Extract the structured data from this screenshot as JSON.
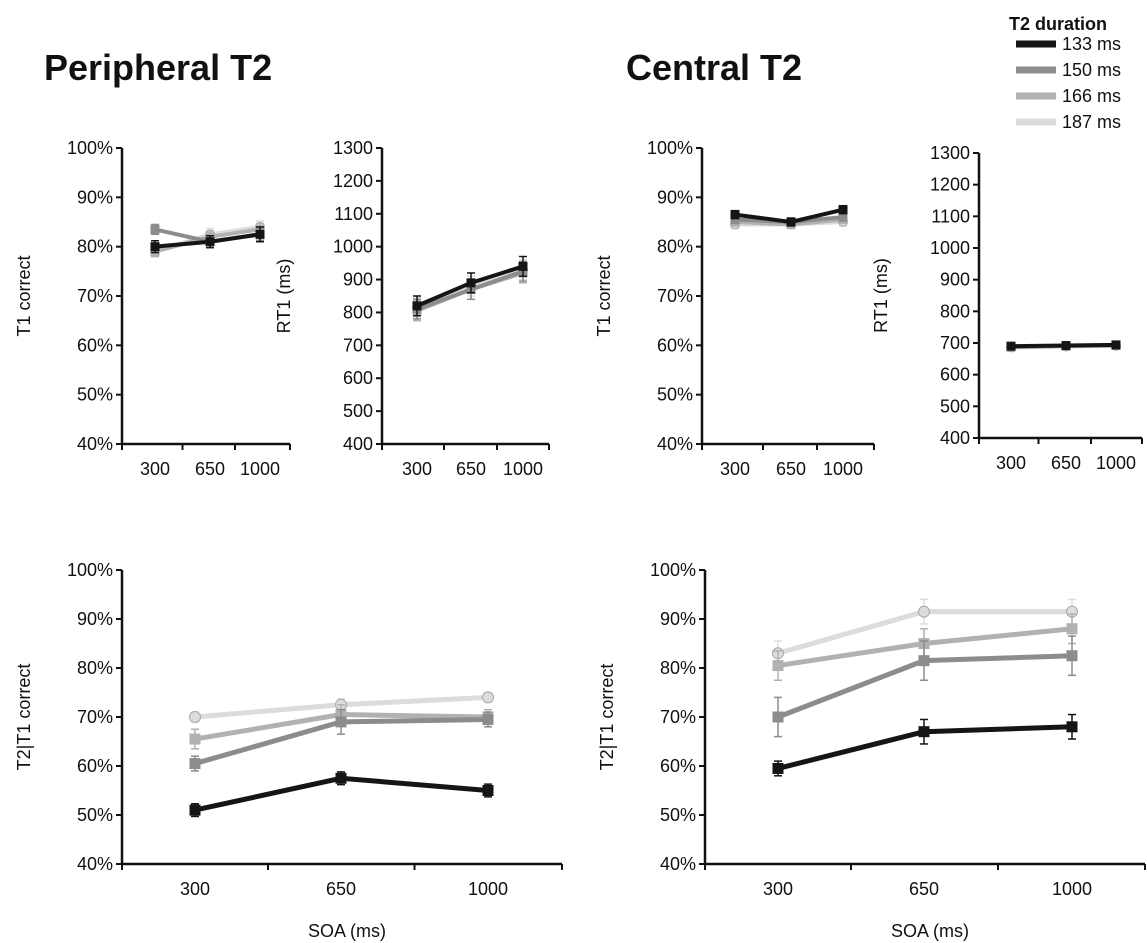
{
  "titles": {
    "peripheral": "Peripheral T2",
    "central": "Central T2"
  },
  "legend": {
    "title": "T2 duration",
    "entries": [
      {
        "label": "133 ms",
        "color": "#151515"
      },
      {
        "label": "150 ms",
        "color": "#8c8c8c"
      },
      {
        "label": "166 ms",
        "color": "#b1b1b1"
      },
      {
        "label": "187 ms",
        "color": "#dcdcdc"
      }
    ]
  },
  "chart_data": [
    {
      "id": "peripheral-t1",
      "type": "line",
      "ylabel": "T1 correct",
      "xlabel": "",
      "categories": [
        "300",
        "650",
        "1000"
      ],
      "yticks": [
        "40%",
        "50%",
        "60%",
        "70%",
        "80%",
        "90%",
        "100%"
      ],
      "ylim": [
        40,
        100
      ],
      "series": [
        {
          "name": "133 ms",
          "values": [
            80,
            81,
            82.5
          ],
          "errors": [
            1.2,
            1.2,
            1.5
          ]
        },
        {
          "name": "150 ms",
          "values": [
            83.5,
            81,
            82.5
          ],
          "errors": [
            1.0,
            1.2,
            1.2
          ]
        },
        {
          "name": "166 ms",
          "values": [
            79,
            82,
            83.5
          ],
          "errors": [
            1.0,
            1.2,
            1.2
          ]
        },
        {
          "name": "187 ms",
          "values": [
            79,
            82.5,
            84
          ],
          "errors": [
            1.0,
            1.2,
            1.2
          ]
        }
      ]
    },
    {
      "id": "peripheral-rt1",
      "type": "line",
      "ylabel": "RT1 (ms)",
      "xlabel": "",
      "categories": [
        "300",
        "650",
        "1000"
      ],
      "yticks": [
        "400",
        "500",
        "600",
        "700",
        "800",
        "900",
        "1000",
        "1100",
        "1200",
        "1300"
      ],
      "ylim": [
        400,
        1300
      ],
      "series": [
        {
          "name": "133 ms",
          "values": [
            820,
            890,
            940
          ],
          "errors": [
            30,
            30,
            30
          ]
        },
        {
          "name": "150 ms",
          "values": [
            810,
            870,
            925
          ],
          "errors": [
            30,
            30,
            30
          ]
        },
        {
          "name": "166 ms",
          "values": [
            805,
            870,
            920
          ],
          "errors": [
            30,
            30,
            30
          ]
        },
        {
          "name": "187 ms",
          "values": [
            815,
            880,
            930
          ],
          "errors": [
            30,
            30,
            30
          ]
        }
      ]
    },
    {
      "id": "central-t1",
      "type": "line",
      "ylabel": "T1 correct",
      "xlabel": "",
      "categories": [
        "300",
        "650",
        "1000"
      ],
      "yticks": [
        "40%",
        "50%",
        "60%",
        "70%",
        "80%",
        "90%",
        "100%"
      ],
      "ylim": [
        40,
        100
      ],
      "series": [
        {
          "name": "133 ms",
          "values": [
            86.5,
            85,
            87.5
          ],
          "errors": [
            0.8,
            0.8,
            0.8
          ]
        },
        {
          "name": "150 ms",
          "values": [
            85.5,
            85,
            86
          ],
          "errors": [
            0.8,
            0.8,
            0.8
          ]
        },
        {
          "name": "166 ms",
          "values": [
            85,
            84.5,
            85.5
          ],
          "errors": [
            0.8,
            0.8,
            0.8
          ]
        },
        {
          "name": "187 ms",
          "values": [
            84.5,
            84.5,
            85
          ],
          "errors": [
            0.8,
            0.8,
            0.8
          ]
        }
      ]
    },
    {
      "id": "central-rt1",
      "type": "line",
      "ylabel": "RT1 (ms)",
      "xlabel": "",
      "categories": [
        "300",
        "650",
        "1000"
      ],
      "yticks": [
        "400",
        "500",
        "600",
        "700",
        "800",
        "900",
        "1000",
        "1100",
        "1200",
        "1300"
      ],
      "ylim": [
        400,
        1300
      ],
      "series": [
        {
          "name": "133 ms",
          "values": [
            690,
            692,
            694
          ],
          "errors": [
            8,
            8,
            8
          ]
        },
        {
          "name": "150 ms",
          "values": [
            688,
            691,
            693
          ],
          "errors": [
            8,
            8,
            8
          ]
        },
        {
          "name": "166 ms",
          "values": [
            687,
            690,
            692
          ],
          "errors": [
            8,
            8,
            8
          ]
        },
        {
          "name": "187 ms",
          "values": [
            686,
            689,
            691
          ],
          "errors": [
            8,
            8,
            8
          ]
        }
      ]
    },
    {
      "id": "peripheral-t2",
      "type": "line",
      "ylabel": "T2|T1 correct",
      "xlabel": "SOA (ms)",
      "categories": [
        "300",
        "650",
        "1000"
      ],
      "yticks": [
        "40%",
        "50%",
        "60%",
        "70%",
        "80%",
        "90%",
        "100%"
      ],
      "ylim": [
        40,
        100
      ],
      "series": [
        {
          "name": "133 ms",
          "values": [
            51,
            57.5,
            55
          ],
          "errors": [
            1.3,
            1.3,
            1.3
          ]
        },
        {
          "name": "150 ms",
          "values": [
            60.5,
            69,
            69.5
          ],
          "errors": [
            1.5,
            2.5,
            1.5
          ]
        },
        {
          "name": "166 ms",
          "values": [
            65.5,
            70.5,
            70
          ],
          "errors": [
            2.0,
            2.0,
            1.5
          ]
        },
        {
          "name": "187 ms",
          "values": [
            70,
            72.5,
            74
          ],
          "errors": [
            1.0,
            1.2,
            1.0
          ]
        }
      ]
    },
    {
      "id": "central-t2",
      "type": "line",
      "ylabel": "T2|T1 correct",
      "xlabel": "SOA (ms)",
      "categories": [
        "300",
        "650",
        "1000"
      ],
      "yticks": [
        "40%",
        "50%",
        "60%",
        "70%",
        "80%",
        "90%",
        "100%"
      ],
      "ylim": [
        40,
        100
      ],
      "series": [
        {
          "name": "133 ms",
          "values": [
            59.5,
            67,
            68
          ],
          "errors": [
            1.5,
            2.5,
            2.5
          ]
        },
        {
          "name": "150 ms",
          "values": [
            70,
            81.5,
            82.5
          ],
          "errors": [
            4.0,
            4.0,
            4.0
          ]
        },
        {
          "name": "166 ms",
          "values": [
            80.5,
            85,
            88
          ],
          "errors": [
            3.0,
            3.0,
            3.0
          ]
        },
        {
          "name": "187 ms",
          "values": [
            83,
            91.5,
            91.5
          ],
          "errors": [
            2.5,
            2.5,
            2.5
          ]
        }
      ]
    }
  ]
}
